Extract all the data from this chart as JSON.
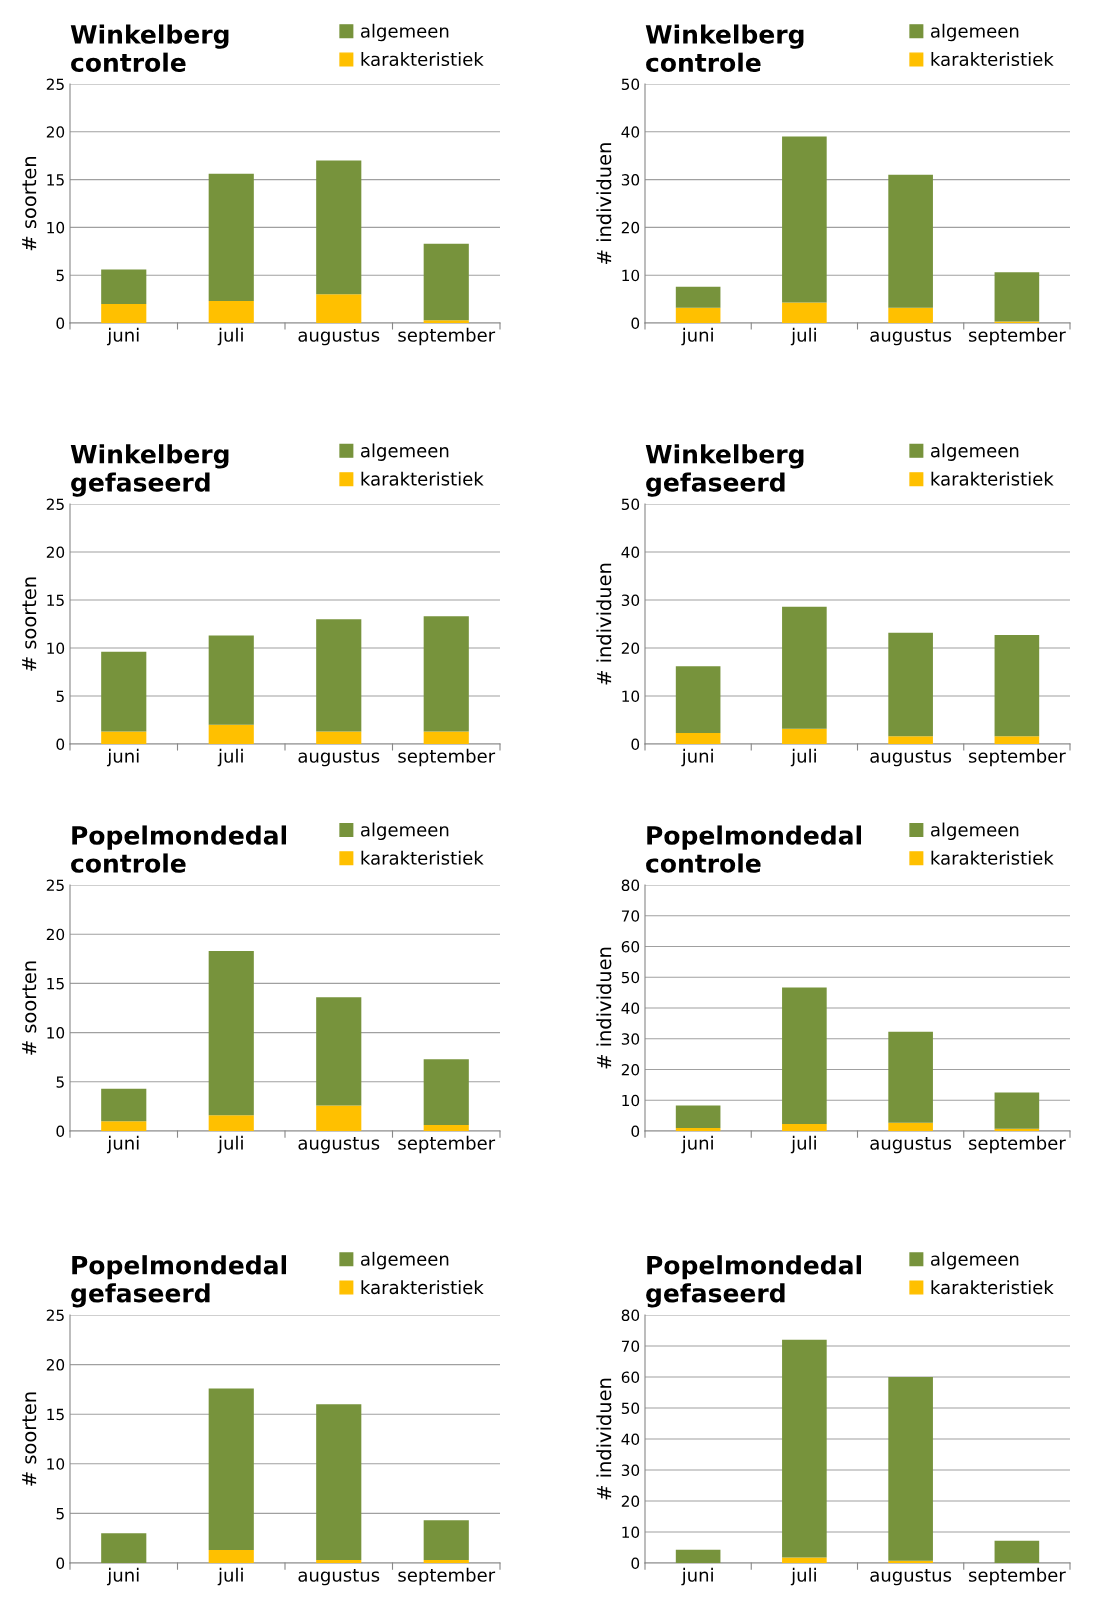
{
  "chart_data": [
    {
      "type": "bar",
      "stacked": true,
      "title": "Winkelberg\ncontrole",
      "ylabel": "# soorten",
      "categories": [
        "juni",
        "juli",
        "augustus",
        "september"
      ],
      "ylim": [
        0,
        25
      ],
      "yticks": [
        0,
        5,
        10,
        15,
        20,
        25
      ],
      "grid": "y",
      "legend": "top right",
      "series": [
        {
          "name": "karakteristiek",
          "color": "#ffc000",
          "values": [
            2,
            2.3,
            3,
            0.3
          ]
        },
        {
          "name": "algemeen",
          "color": "#77933c",
          "values": [
            3.6,
            13.3,
            14,
            8.0
          ]
        }
      ]
    },
    {
      "type": "bar",
      "stacked": true,
      "title": "Winkelberg\ncontrole",
      "ylabel": "# individuen",
      "categories": [
        "juni",
        "juli",
        "augustus",
        "september"
      ],
      "ylim": [
        0,
        50
      ],
      "yticks": [
        0,
        10,
        20,
        30,
        40,
        50
      ],
      "grid": "y",
      "legend": "top right",
      "series": [
        {
          "name": "karakteristiek",
          "color": "#ffc000",
          "values": [
            3.2,
            4.3,
            3.2,
            0.3
          ]
        },
        {
          "name": "algemeen",
          "color": "#77933c",
          "values": [
            4.4,
            34.7,
            27.8,
            10.3
          ]
        }
      ]
    },
    {
      "type": "bar",
      "stacked": true,
      "title": "Winkelberg\ngefaseerd",
      "ylabel": "# soorten",
      "categories": [
        "juni",
        "juli",
        "augustus",
        "september"
      ],
      "ylim": [
        0,
        25
      ],
      "yticks": [
        0,
        5,
        10,
        15,
        20,
        25
      ],
      "grid": "y",
      "legend": "top right",
      "series": [
        {
          "name": "karakteristiek",
          "color": "#ffc000",
          "values": [
            1.3,
            2,
            1.3,
            1.3
          ]
        },
        {
          "name": "algemeen",
          "color": "#77933c",
          "values": [
            8.3,
            9.3,
            11.7,
            12.0
          ]
        }
      ]
    },
    {
      "type": "bar",
      "stacked": true,
      "title": "Winkelberg\ngefaseerd",
      "ylabel": "# individuen",
      "categories": [
        "juni",
        "juli",
        "augustus",
        "september"
      ],
      "ylim": [
        0,
        50
      ],
      "yticks": [
        0,
        10,
        20,
        30,
        40,
        50
      ],
      "grid": "y",
      "legend": "top right",
      "series": [
        {
          "name": "karakteristiek",
          "color": "#ffc000",
          "values": [
            2.3,
            3.2,
            1.6,
            1.6
          ]
        },
        {
          "name": "algemeen",
          "color": "#77933c",
          "values": [
            13.9,
            25.4,
            21.6,
            21.1
          ]
        }
      ]
    },
    {
      "type": "bar",
      "stacked": true,
      "title": "Popelmondedal\ncontrole",
      "ylabel": "# soorten",
      "categories": [
        "juni",
        "juli",
        "augustus",
        "september"
      ],
      "ylim": [
        0,
        25
      ],
      "yticks": [
        0,
        5,
        10,
        15,
        20,
        25
      ],
      "grid": "y",
      "legend": "top right",
      "series": [
        {
          "name": "karakteristiek",
          "color": "#ffc000",
          "values": [
            1,
            1.6,
            2.6,
            0.6
          ]
        },
        {
          "name": "algemeen",
          "color": "#77933c",
          "values": [
            3.3,
            16.7,
            11.0,
            6.7
          ]
        }
      ]
    },
    {
      "type": "bar",
      "stacked": true,
      "title": "Popelmondedal\ncontrole",
      "ylabel": "# individuen",
      "categories": [
        "juni",
        "juli",
        "augustus",
        "september"
      ],
      "ylim": [
        0,
        80
      ],
      "yticks": [
        0,
        10,
        20,
        30,
        40,
        50,
        60,
        70,
        80
      ],
      "grid": "y",
      "legend": "top right",
      "series": [
        {
          "name": "karakteristiek",
          "color": "#ffc000",
          "values": [
            1,
            2.3,
            2.7,
            0.7
          ]
        },
        {
          "name": "algemeen",
          "color": "#77933c",
          "values": [
            7.3,
            44.4,
            29.6,
            11.8
          ]
        }
      ]
    },
    {
      "type": "bar",
      "stacked": true,
      "title": "Popelmondedal\ngefaseerd",
      "ylabel": "# soorten",
      "categories": [
        "juni",
        "juli",
        "augustus",
        "september"
      ],
      "ylim": [
        0,
        25
      ],
      "yticks": [
        0,
        5,
        10,
        15,
        20,
        25
      ],
      "grid": "y",
      "legend": "top right",
      "series": [
        {
          "name": "karakteristiek",
          "color": "#ffc000",
          "values": [
            0,
            1.3,
            0.3,
            0.3
          ]
        },
        {
          "name": "algemeen",
          "color": "#77933c",
          "values": [
            3,
            16.3,
            15.7,
            4.0
          ]
        }
      ]
    },
    {
      "type": "bar",
      "stacked": true,
      "title": "Popelmondedal\ngefaseerd",
      "ylabel": "# individuen",
      "categories": [
        "juni",
        "juli",
        "augustus",
        "september"
      ],
      "ylim": [
        0,
        80
      ],
      "yticks": [
        0,
        10,
        20,
        30,
        40,
        50,
        60,
        70,
        80
      ],
      "grid": "y",
      "legend": "top right",
      "series": [
        {
          "name": "karakteristiek",
          "color": "#ffc000",
          "values": [
            0,
            1.8,
            0.7,
            0
          ]
        },
        {
          "name": "algemeen",
          "color": "#77933c",
          "values": [
            4.3,
            70.2,
            59.3,
            7.2
          ]
        }
      ]
    }
  ]
}
